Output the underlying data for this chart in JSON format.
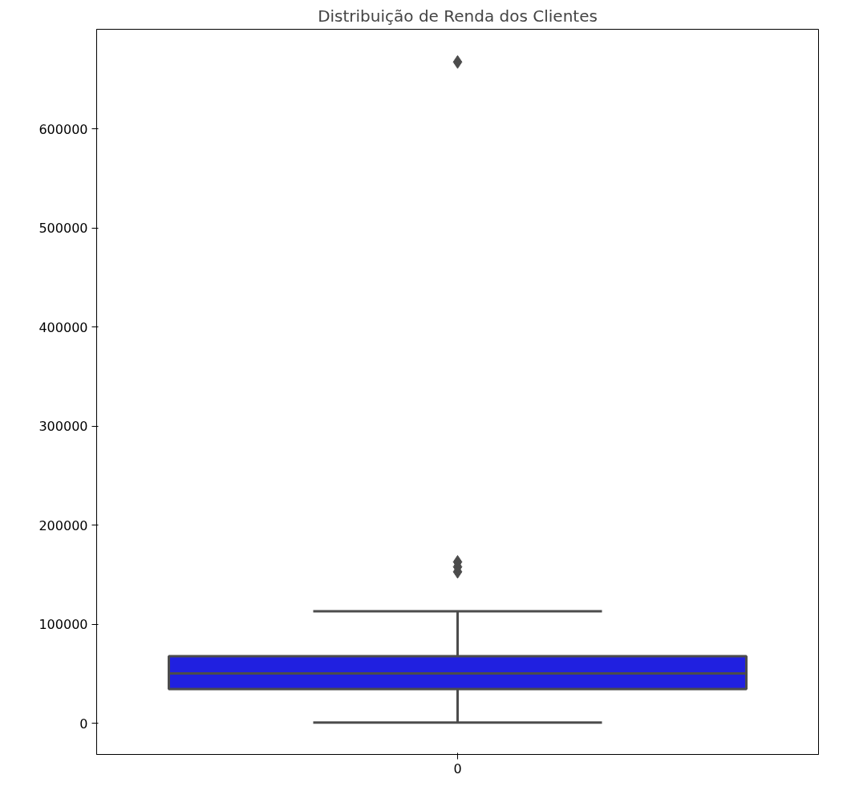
{
  "chart_data": {
    "type": "box",
    "title": "Distribuição de Renda dos Clientes",
    "categories": [
      "0"
    ],
    "series": [
      {
        "color": "#2020e0",
        "boxes": [
          {
            "low": 800,
            "q1": 34700,
            "median": 50400,
            "q3": 67800,
            "high": 113200,
            "outliers": [
              153000,
              158000,
              163000,
              667800
            ]
          }
        ]
      }
    ],
    "ylim": [
      -31400,
      700800
    ],
    "yticks": [
      0,
      100000,
      200000,
      300000,
      400000,
      500000,
      600000
    ],
    "grid": false,
    "marker": "diamond"
  }
}
